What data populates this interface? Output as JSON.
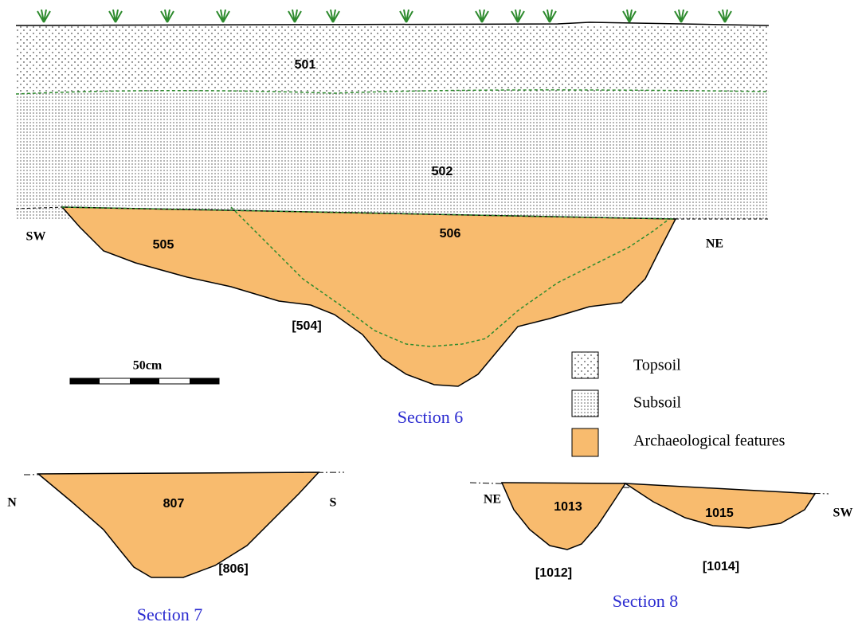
{
  "sections": [
    {
      "title": "Section 6",
      "layers": [
        "501",
        "502"
      ],
      "contexts": [
        "505",
        "506"
      ],
      "cut": "[504]",
      "orientation": [
        "SW",
        "NE"
      ]
    },
    {
      "title": "Section 7",
      "contexts": [
        "807"
      ],
      "cut": "[806]",
      "orientation": [
        "N",
        "S"
      ]
    },
    {
      "title": "Section 8",
      "contexts": [
        "1013",
        "1015"
      ],
      "cuts": [
        "[1012]",
        "[1014]"
      ],
      "orientation": [
        "NE",
        "SW"
      ]
    }
  ],
  "scale": {
    "label": "50cm"
  },
  "legend": {
    "items": [
      "Topsoil",
      "Subsoil",
      "Archaeological features"
    ]
  }
}
